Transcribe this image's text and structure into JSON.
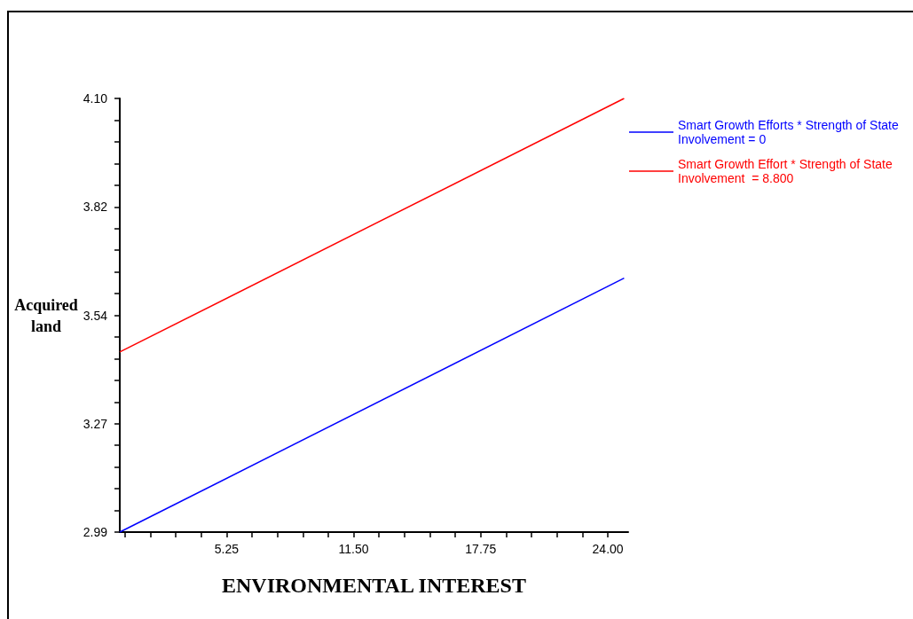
{
  "chart_data": {
    "type": "line",
    "xlabel": "ENVIRONMENTAL INTEREST",
    "ylabel": "Acquired\nland",
    "x": [
      0,
      24.8
    ],
    "series": [
      {
        "name": "Smart Growth Efforts * Strength of State Involvement = 0",
        "color": "#0000ff",
        "values": [
          2.99,
          3.64
        ]
      },
      {
        "name": "Smart Growth Effort * Strength of State Involvement  = 8.800",
        "color": "#ff0000",
        "values": [
          3.451,
          4.1
        ]
      }
    ],
    "xlim": [
      0,
      25
    ],
    "xticks": [
      {
        "value": 0.25,
        "label": null
      },
      {
        "value": 1.5,
        "label": null
      },
      {
        "value": 2.75,
        "label": null
      },
      {
        "value": 4,
        "label": null
      },
      {
        "value": 5.25,
        "label": "5.25"
      },
      {
        "value": 6.5,
        "label": null
      },
      {
        "value": 7.75,
        "label": null
      },
      {
        "value": 9,
        "label": null
      },
      {
        "value": 10.25,
        "label": null
      },
      {
        "value": 11.5,
        "label": "11.50"
      },
      {
        "value": 12.75,
        "label": null
      },
      {
        "value": 14,
        "label": null
      },
      {
        "value": 15.25,
        "label": null
      },
      {
        "value": 16.5,
        "label": null
      },
      {
        "value": 17.75,
        "label": "17.75"
      },
      {
        "value": 19,
        "label": null
      },
      {
        "value": 20.25,
        "label": null
      },
      {
        "value": 21.5,
        "label": null
      },
      {
        "value": 22.75,
        "label": null
      },
      {
        "value": 24,
        "label": "24.00"
      }
    ],
    "ylim": [
      2.99,
      4.1
    ],
    "yticks": [
      {
        "value": 2.99,
        "label": "2.99"
      },
      {
        "value": 3.0455,
        "label": null
      },
      {
        "value": 3.101,
        "label": null
      },
      {
        "value": 3.1565,
        "label": null
      },
      {
        "value": 3.212,
        "label": null
      },
      {
        "value": 3.2675,
        "label": "3.27"
      },
      {
        "value": 3.323,
        "label": null
      },
      {
        "value": 3.3785,
        "label": null
      },
      {
        "value": 3.434,
        "label": null
      },
      {
        "value": 3.4895,
        "label": null
      },
      {
        "value": 3.545,
        "label": "3.54"
      },
      {
        "value": 3.6005,
        "label": null
      },
      {
        "value": 3.656,
        "label": null
      },
      {
        "value": 3.7115,
        "label": null
      },
      {
        "value": 3.767,
        "label": null
      },
      {
        "value": 3.8225,
        "label": "3.82"
      },
      {
        "value": 3.878,
        "label": null
      },
      {
        "value": 3.9335,
        "label": null
      },
      {
        "value": 3.989,
        "label": null
      },
      {
        "value": 4.0445,
        "label": null
      },
      {
        "value": 4.1,
        "label": "4.10"
      }
    ],
    "grid": false,
    "legend": "top right",
    "marker": "none",
    "line_style": "solid"
  }
}
